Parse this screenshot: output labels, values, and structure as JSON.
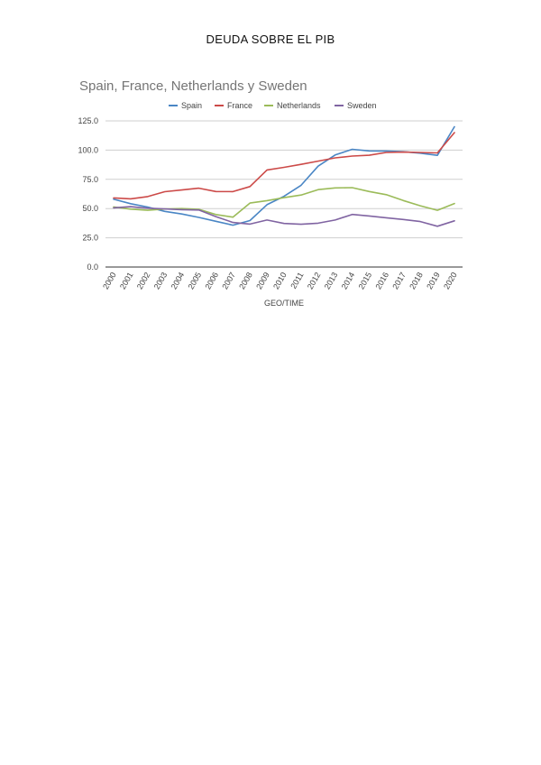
{
  "page": {
    "heading": "DEUDA SOBRE EL PIB"
  },
  "chart_data": {
    "type": "line",
    "title": "Spain, France, Netherlands y Sweden",
    "xlabel": "GEO/TIME",
    "ylabel": "",
    "ylim": [
      0,
      125
    ],
    "yticks": [
      "0.0",
      "25.0",
      "50.0",
      "75.0",
      "100.0",
      "125.0"
    ],
    "grid": true,
    "legend_position": "top",
    "categories": [
      "2000",
      "2001",
      "2002",
      "2003",
      "2004",
      "2005",
      "2006",
      "2007",
      "2008",
      "2009",
      "2010",
      "2011",
      "2012",
      "2013",
      "2014",
      "2015",
      "2016",
      "2017",
      "2018",
      "2019",
      "2020"
    ],
    "series": [
      {
        "name": "Spain",
        "color": "#4a86c5",
        "values": [
          58,
          54.2,
          51.3,
          47.6,
          45.4,
          42.4,
          39.1,
          35.8,
          39.7,
          53.3,
          60.5,
          69.9,
          86.3,
          95.8,
          100.7,
          99.3,
          99.2,
          98.6,
          97.4,
          95.5,
          120
        ]
      },
      {
        "name": "France",
        "color": "#cc4a48",
        "values": [
          59.1,
          58.3,
          60.3,
          64.4,
          65.9,
          67.4,
          64.6,
          64.5,
          68.8,
          83,
          85.3,
          87.8,
          90.6,
          93.4,
          94.9,
          95.6,
          98,
          98.3,
          98,
          97.6,
          115
        ]
      },
      {
        "name": "Netherlands",
        "color": "#9bbb59",
        "values": [
          51.4,
          49.5,
          48.5,
          49.6,
          50,
          49.4,
          44.9,
          42.7,
          54.7,
          56.8,
          59.3,
          61.6,
          66.2,
          67.7,
          67.9,
          64.6,
          61.9,
          56.9,
          52.4,
          48.5,
          54.3
        ]
      },
      {
        "name": "Sweden",
        "color": "#8064a2",
        "values": [
          50.6,
          51.6,
          50.3,
          49.7,
          49.1,
          48.8,
          43.1,
          38.1,
          36.7,
          40.2,
          37.3,
          36.6,
          37.5,
          40.2,
          45,
          43.7,
          42.1,
          40.7,
          38.9,
          34.9,
          39.5
        ]
      }
    ]
  }
}
